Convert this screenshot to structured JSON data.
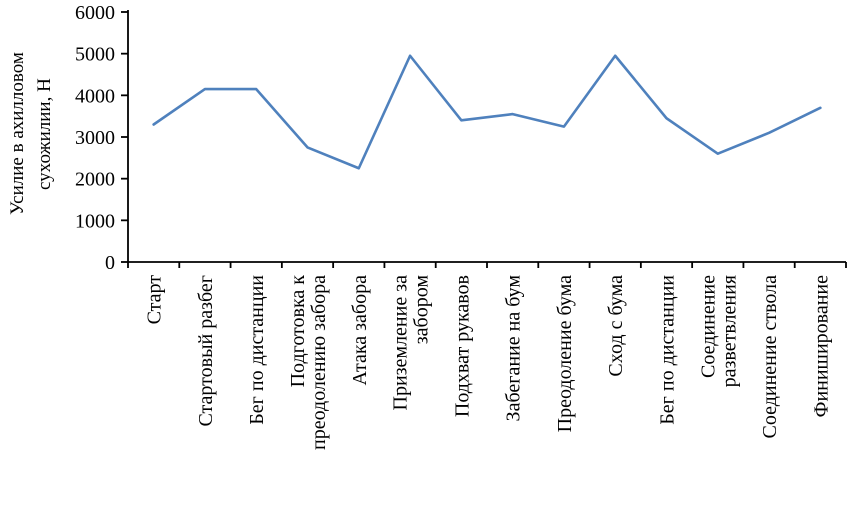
{
  "chart_data": {
    "type": "line",
    "title": "",
    "ylabel": "Усилие в ахилловом сухожилии, Н",
    "xlabel": "",
    "ylim": [
      0,
      6000
    ],
    "yticks": [
      0,
      1000,
      2000,
      3000,
      4000,
      5000,
      6000
    ],
    "categories": [
      "Старт",
      "Стартовый разбег",
      "Бег по дистанции",
      [
        "Подготовка к",
        "преодолению забора"
      ],
      "Атака забора",
      [
        "Приземление за",
        "забором"
      ],
      "Подхват рукавов",
      "Забегание на бум",
      "Преодоление бума",
      "Сход с бума",
      "Бег по дистанции",
      [
        "Соединение",
        "разветвления"
      ],
      "Соединение ствола",
      "Финиширование"
    ],
    "values": [
      3300,
      4150,
      4150,
      2750,
      2250,
      4950,
      3400,
      3550,
      3250,
      4950,
      3450,
      2600,
      3100,
      3700
    ],
    "series_color": "#4f81bd",
    "axis_color": "#000000",
    "grid": false,
    "legend": "none"
  }
}
